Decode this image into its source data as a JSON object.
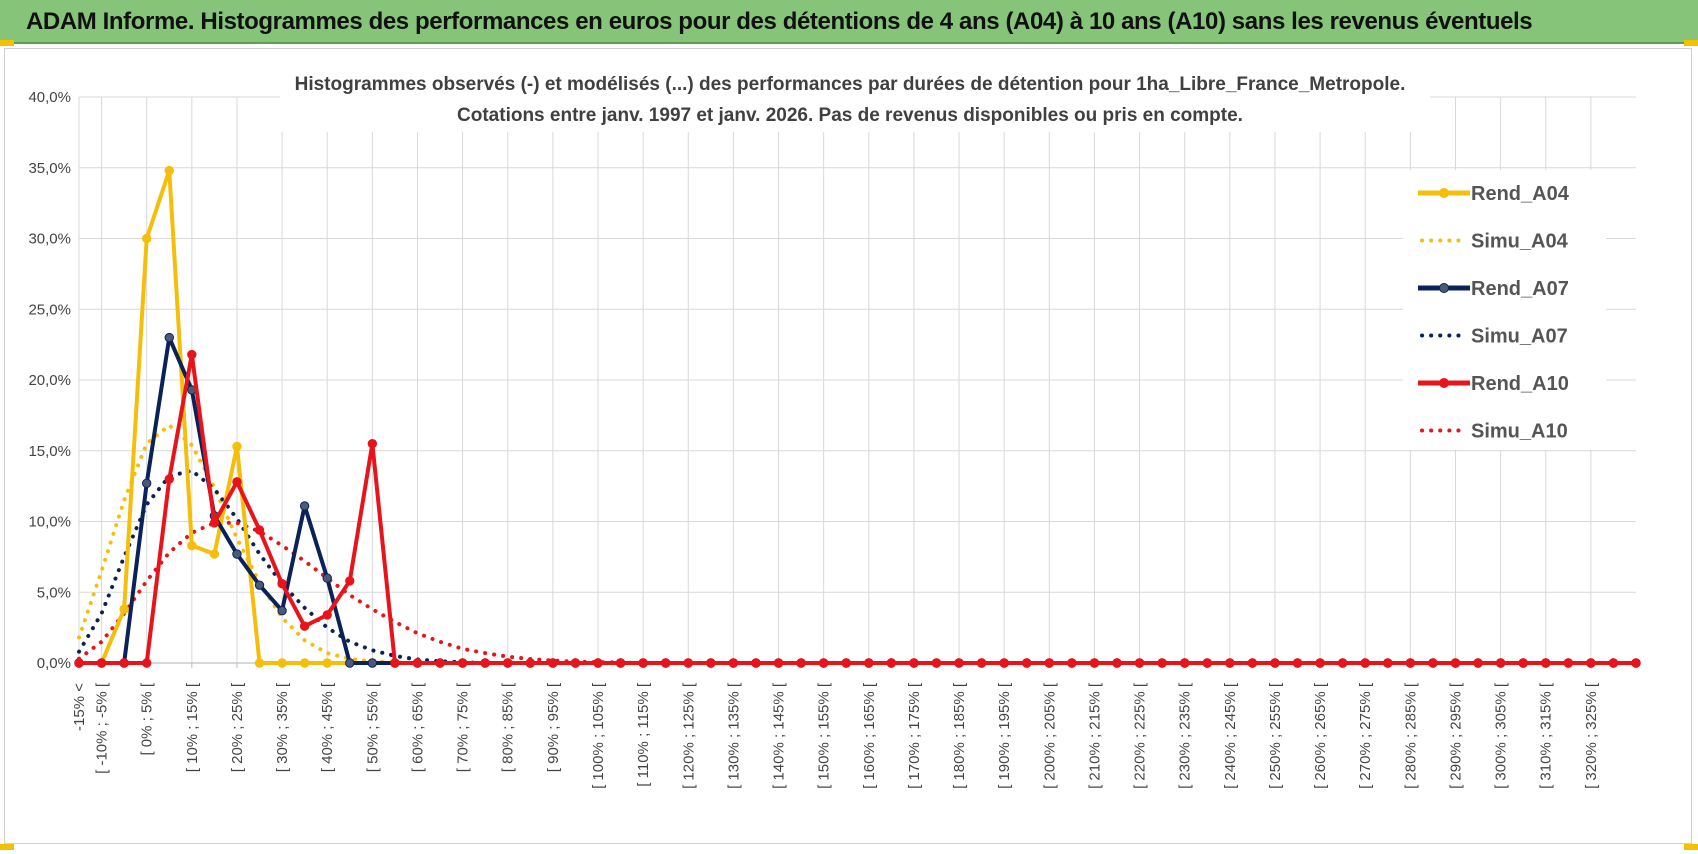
{
  "banner": {
    "title": "ADAM Informe. Histogrammes des performances en euros pour des détentions de 4 ans (A04) à 10 ans (A10) sans les revenus éventuels"
  },
  "colors": {
    "A04": "#f5be0b",
    "A07": "#0b2258",
    "A10": "#e8141b",
    "grid": "#d9d9d9",
    "banner": "#86c47a"
  },
  "chart_data": {
    "type": "line",
    "title": "Histogrammes observés (-) et modélisés (...)  des performances par durées de détention pour 1ha_Libre_France_Metropole.",
    "subtitle": "Cotations entre janv. 1997 et janv. 2026. Pas de revenus disponibles ou pris en compte.",
    "ylim": [
      0,
      40
    ],
    "yticks": [
      "0,0%",
      "5,0%",
      "10,0%",
      "15,0%",
      "20,0%",
      "25,0%",
      "30,0%",
      "35,0%",
      "40,0%"
    ],
    "grid": true,
    "legend_position": "right",
    "x_labels": [
      "-15% <",
      "[ -10% ; -5% [",
      "[ 0% ; 5% [",
      "[ 10% ; 15% [",
      "[ 20% ; 25% [",
      "[ 30% ; 35% [",
      "[ 40% ; 45% [",
      "[ 50% ; 55% [",
      "[ 60% ; 65% [",
      "[ 70% ; 75% [",
      "[ 80% ; 85% [",
      "[ 90% ; 95% [",
      "[ 100% ; 105% [",
      "[ 110% ; 115% [",
      "[ 120% ; 125% [",
      "[ 130% ; 135% [",
      "[ 140% ; 145% [",
      "[ 150% ; 155% [",
      "[ 160% ; 165% [",
      "[ 170% ; 175% [",
      "[ 180% ; 185% [",
      "[ 190% ; 195% [",
      "[ 200% ; 205% [",
      "[ 210% ; 215% [",
      "[ 220% ; 225% [",
      "[ 230% ; 235% [",
      "[ 240% ; 245% [",
      "[ 250% ; 255% [",
      "[ 260% ; 265% [",
      "[ 270% ; 275% [",
      "[ 280% ; 285% [",
      "[ 290% ; 295% [",
      "[ 300% ; 305% [",
      "[ 310% ; 315% [",
      "[ 320% ; 325% ["
    ],
    "series": [
      {
        "name": "Rend_A04",
        "style": "solid",
        "color_key": "A04",
        "values": [
          0,
          0,
          3.8,
          30.0,
          34.8,
          8.3,
          7.7,
          15.3,
          0,
          0,
          0,
          0,
          0,
          0,
          0,
          0,
          0,
          0,
          0,
          0,
          0,
          0,
          0,
          0,
          0,
          0,
          0,
          0,
          0,
          0,
          0,
          0,
          0,
          0,
          0,
          0,
          0,
          0,
          0,
          0,
          0,
          0,
          0,
          0,
          0,
          0,
          0,
          0,
          0,
          0,
          0,
          0,
          0,
          0,
          0,
          0,
          0,
          0,
          0,
          0,
          0,
          0,
          0,
          0,
          0,
          0,
          0,
          0,
          0,
          0
        ]
      },
      {
        "name": "Simu_A04",
        "style": "dotted",
        "color_key": "A04",
        "values": [
          1.8,
          6.5,
          11.5,
          15.5,
          16.8,
          15.4,
          12.4,
          8.8,
          5.7,
          3.2,
          1.6,
          0.7,
          0.3,
          0.1,
          0.05,
          0,
          0,
          0,
          0,
          0,
          0,
          0,
          0,
          0,
          0,
          0,
          0,
          0,
          0,
          0,
          0,
          0,
          0,
          0,
          0,
          0,
          0,
          0,
          0,
          0,
          0,
          0,
          0,
          0,
          0,
          0,
          0,
          0,
          0,
          0,
          0,
          0,
          0,
          0,
          0,
          0,
          0,
          0,
          0,
          0,
          0,
          0,
          0,
          0,
          0,
          0,
          0,
          0,
          0,
          0
        ]
      },
      {
        "name": "Rend_A07",
        "style": "solid",
        "color_key": "A07",
        "values": [
          0,
          0,
          0,
          12.7,
          23.0,
          19.3,
          10.4,
          7.7,
          5.5,
          3.7,
          11.1,
          6.0,
          0,
          0,
          0,
          0,
          0,
          0,
          0,
          0,
          0,
          0,
          0,
          0,
          0,
          0,
          0,
          0,
          0,
          0,
          0,
          0,
          0,
          0,
          0,
          0,
          0,
          0,
          0,
          0,
          0,
          0,
          0,
          0,
          0,
          0,
          0,
          0,
          0,
          0,
          0,
          0,
          0,
          0,
          0,
          0,
          0,
          0,
          0,
          0,
          0,
          0,
          0,
          0,
          0,
          0,
          0,
          0,
          0,
          0
        ]
      },
      {
        "name": "Simu_A07",
        "style": "dotted",
        "color_key": "A07",
        "values": [
          0.8,
          3.5,
          7.5,
          11.2,
          13.2,
          13.6,
          12.3,
          10.2,
          7.7,
          5.6,
          3.9,
          2.5,
          1.5,
          0.9,
          0.5,
          0.25,
          0.12,
          0.05,
          0,
          0,
          0,
          0,
          0,
          0,
          0,
          0,
          0,
          0,
          0,
          0,
          0,
          0,
          0,
          0,
          0,
          0,
          0,
          0,
          0,
          0,
          0,
          0,
          0,
          0,
          0,
          0,
          0,
          0,
          0,
          0,
          0,
          0,
          0,
          0,
          0,
          0,
          0,
          0,
          0,
          0,
          0,
          0,
          0,
          0,
          0,
          0,
          0,
          0,
          0,
          0
        ]
      },
      {
        "name": "Rend_A10",
        "style": "solid",
        "color_key": "A10",
        "values": [
          0,
          0,
          0,
          0,
          13.0,
          21.8,
          9.9,
          12.8,
          9.4,
          5.6,
          2.6,
          3.4,
          5.8,
          15.5,
          0,
          0,
          0,
          0,
          0,
          0,
          0,
          0,
          0,
          0,
          0,
          0,
          0,
          0,
          0,
          0,
          0,
          0,
          0,
          0,
          0,
          0,
          0,
          0,
          0,
          0,
          0,
          0,
          0,
          0,
          0,
          0,
          0,
          0,
          0,
          0,
          0,
          0,
          0,
          0,
          0,
          0,
          0,
          0,
          0,
          0,
          0,
          0,
          0,
          0,
          0,
          0,
          0,
          0,
          0,
          0
        ]
      },
      {
        "name": "Simu_A10",
        "style": "dotted",
        "color_key": "A10",
        "values": [
          0.3,
          1.5,
          3.5,
          5.8,
          7.8,
          9.2,
          9.9,
          9.9,
          9.3,
          8.3,
          7.2,
          6.0,
          4.8,
          3.8,
          2.9,
          2.1,
          1.5,
          1.0,
          0.7,
          0.45,
          0.28,
          0.17,
          0.1,
          0.06,
          0.03,
          0,
          0,
          0,
          0,
          0,
          0,
          0,
          0,
          0,
          0,
          0,
          0,
          0,
          0,
          0,
          0,
          0,
          0,
          0,
          0,
          0,
          0,
          0,
          0,
          0,
          0,
          0,
          0,
          0,
          0,
          0,
          0,
          0,
          0,
          0,
          0,
          0,
          0,
          0,
          0,
          0,
          0,
          0,
          0,
          0
        ]
      }
    ]
  }
}
